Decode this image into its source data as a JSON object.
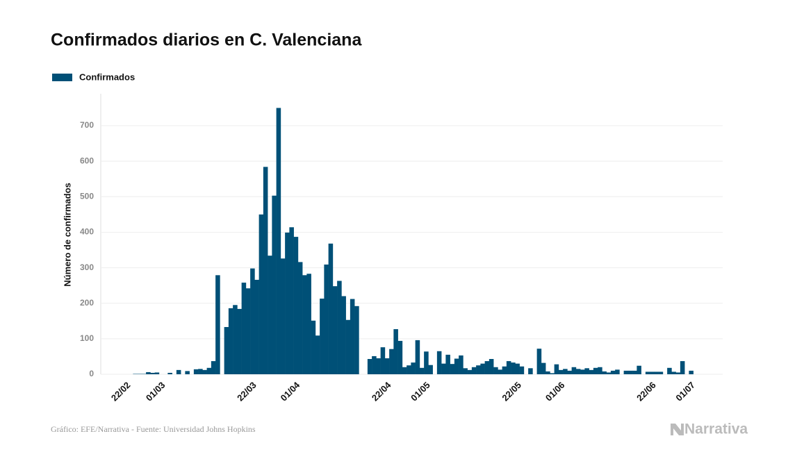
{
  "chart_data": {
    "type": "bar",
    "title": "Confirmados diarios en C. Valenciana",
    "y_label": "Número de confirmados",
    "source": "Gráfico: EFE/Narrativa - Fuente: Universidad Johns Hopkins",
    "brand": "Narrativa",
    "categories": [
      "22/02",
      null,
      null,
      null,
      null,
      null,
      null,
      null,
      "01/03",
      null,
      null,
      null,
      null,
      null,
      null,
      null,
      null,
      null,
      null,
      null,
      null,
      null,
      null,
      null,
      null,
      null,
      null,
      null,
      null,
      "22/03",
      null,
      null,
      null,
      null,
      null,
      null,
      null,
      null,
      null,
      "01/04",
      null,
      null,
      null,
      null,
      null,
      null,
      null,
      null,
      null,
      null,
      null,
      null,
      null,
      null,
      null,
      null,
      null,
      null,
      null,
      null,
      "22/04",
      null,
      null,
      null,
      null,
      null,
      null,
      null,
      null,
      "01/05",
      null,
      null,
      null,
      null,
      null,
      null,
      null,
      null,
      null,
      null,
      null,
      null,
      null,
      null,
      null,
      null,
      null,
      null,
      null,
      null,
      "22/05",
      null,
      null,
      null,
      null,
      null,
      null,
      null,
      null,
      null,
      "01/06",
      null,
      null,
      null,
      null,
      null,
      null,
      null,
      null,
      null,
      null,
      null,
      null,
      null,
      null,
      null,
      null,
      null,
      null,
      null,
      null,
      "22/06",
      null,
      null,
      null,
      null,
      null,
      null,
      null,
      null,
      "01/07"
    ],
    "series": [
      {
        "name": "Confirmados",
        "color": "#005077",
        "values": [
          0,
          0,
          1,
          1,
          1,
          6,
          4,
          5,
          0,
          0,
          4,
          0,
          12,
          0,
          9,
          0,
          14,
          15,
          12,
          18,
          37,
          279,
          0,
          133,
          186,
          195,
          184,
          258,
          242,
          298,
          266,
          450,
          584,
          334,
          503,
          750,
          326,
          399,
          414,
          387,
          316,
          279,
          283,
          151,
          109,
          213,
          309,
          368,
          248,
          263,
          220,
          153,
          212,
          192,
          0,
          0,
          43,
          51,
          45,
          76,
          45,
          71,
          127,
          94,
          20,
          25,
          33,
          96,
          18,
          64,
          26,
          0,
          65,
          30,
          55,
          29,
          44,
          53,
          17,
          12,
          20,
          25,
          30,
          37,
          43,
          20,
          13,
          22,
          37,
          33,
          30,
          22,
          0,
          17,
          0,
          72,
          32,
          8,
          3,
          28,
          12,
          15,
          10,
          20,
          15,
          13,
          17,
          12,
          18,
          20,
          8,
          5,
          10,
          13,
          0,
          10,
          10,
          10,
          24,
          0,
          7,
          7,
          7,
          7,
          0,
          18,
          7,
          5,
          37,
          0,
          10
        ]
      }
    ],
    "ylim": [
      0,
      790
    ],
    "yticks": [
      0,
      100,
      200,
      300,
      400,
      500,
      600,
      700
    ],
    "grid": true
  }
}
